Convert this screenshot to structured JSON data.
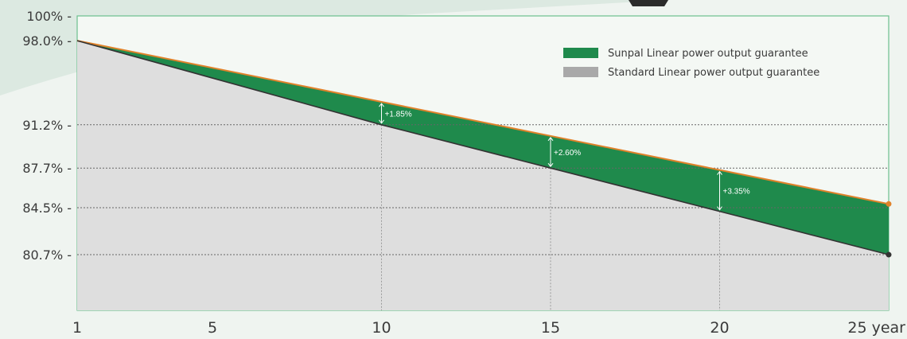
{
  "colors": {
    "background": "#eff4f0",
    "plot_background": "#f4f8f4",
    "frame": "#6bbf8e",
    "sunpal_fill": "#1f8a4c",
    "standard_fill": "#dedede",
    "sunpal_line": "#e0822a",
    "standard_line": "#333333",
    "grid": "#666666"
  },
  "chart_data": {
    "type": "area",
    "x": [
      1,
      10,
      15,
      20,
      25
    ],
    "series": [
      {
        "name": "Sunpal Linear power output guarantee",
        "values": [
          98.0,
          93.05,
          90.3,
          87.55,
          84.8
        ],
        "color": "#1f8a4c"
      },
      {
        "name": "Standard Linear power output guarantee",
        "values": [
          98.0,
          91.2,
          87.7,
          84.2,
          80.7
        ],
        "color": "#a9a9a9"
      }
    ],
    "x_ticks": [
      {
        "value": 1,
        "label": "1"
      },
      {
        "value": 5,
        "label": "5"
      },
      {
        "value": 10,
        "label": "10"
      },
      {
        "value": 15,
        "label": "15"
      },
      {
        "value": 20,
        "label": "20"
      },
      {
        "value": 25,
        "label": "25 year"
      }
    ],
    "y_ticks": [
      {
        "value": 100,
        "label": "100% -"
      },
      {
        "value": 98.0,
        "label": "98.0% -"
      },
      {
        "value": 91.2,
        "label": "91.2%  -"
      },
      {
        "value": 87.7,
        "label": "87.7% -"
      },
      {
        "value": 84.5,
        "label": "84.5% -"
      },
      {
        "value": 80.7,
        "label": "80.7% -"
      }
    ],
    "gridlines_y": [
      91.2,
      87.7,
      84.5,
      80.7
    ],
    "gridlines_x": [
      10,
      15,
      20
    ],
    "annotations": [
      {
        "x": 10,
        "label": "+1.85%"
      },
      {
        "x": 15,
        "label": "+2.60%"
      },
      {
        "x": 20,
        "label": "+3.35%"
      }
    ],
    "xlim": [
      1,
      25
    ],
    "ylim": [
      76.2,
      100
    ],
    "legend_position": "top-right",
    "title": "",
    "xlabel": "",
    "ylabel": ""
  }
}
